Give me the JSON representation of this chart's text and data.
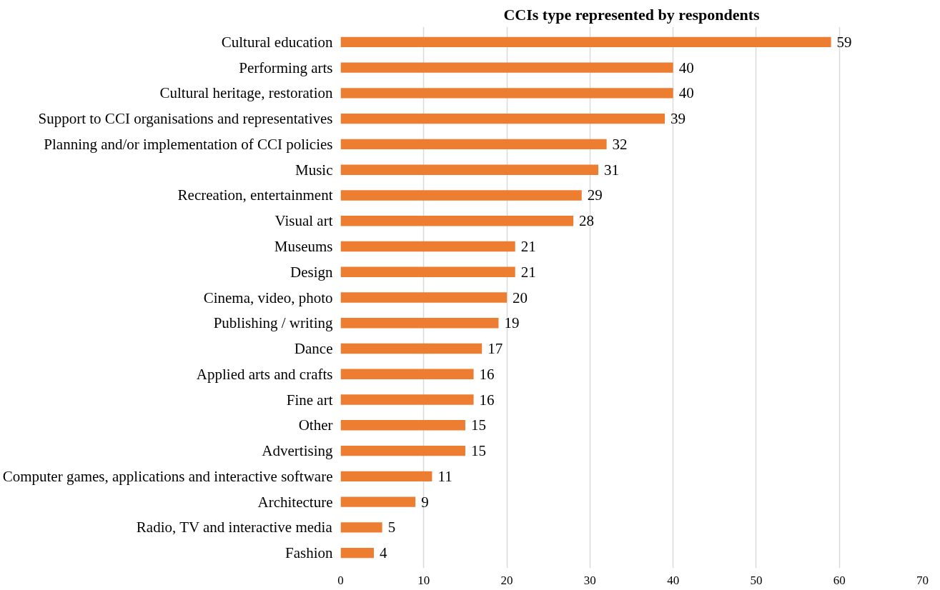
{
  "chart_data": {
    "type": "bar",
    "orientation": "horizontal",
    "title": "CCIs type represented by respondents",
    "categories": [
      "Cultural education",
      "Performing arts",
      "Cultural heritage, restoration",
      "Support to CCI organisations and representatives",
      "Planning and/or implementation of CCI policies",
      "Music",
      "Recreation, entertainment",
      "Visual art",
      "Museums",
      "Design",
      "Cinema, video, photo",
      "Publishing / writing",
      "Dance",
      "Applied arts and crafts",
      "Fine art",
      "Other",
      "Advertising",
      "Computer games, applications and interactive software",
      "Architecture",
      "Radio, TV and interactive media",
      "Fashion"
    ],
    "values": [
      59,
      40,
      40,
      39,
      32,
      31,
      29,
      28,
      21,
      21,
      20,
      19,
      17,
      16,
      16,
      15,
      15,
      11,
      9,
      5,
      4
    ],
    "color": "#ed7d31",
    "xlim": [
      0,
      70
    ],
    "xticks": [
      0,
      10,
      20,
      30,
      40,
      50,
      60,
      70
    ],
    "grid": "x",
    "data_labels": true
  }
}
